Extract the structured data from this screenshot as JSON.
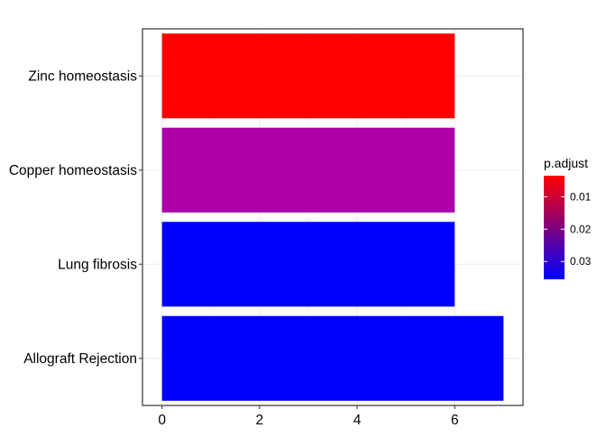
{
  "chart_data": {
    "type": "bar",
    "orientation": "horizontal",
    "categories": [
      "Allograft Rejection",
      "Lung fibrosis",
      "Copper homeostasis",
      "Zinc homeostasis"
    ],
    "values": [
      7,
      6,
      6,
      6
    ],
    "bar_colors": [
      "#0000ff",
      "#0000ff",
      "#ad00a9",
      "#ff0000"
    ],
    "xlim": [
      -0.4,
      7.4
    ],
    "x_ticks": [
      0,
      2,
      4,
      6
    ],
    "x_tick_labels": [
      "0",
      "2",
      "4",
      "6"
    ],
    "xlabel": "",
    "ylabel": "",
    "grid": true,
    "legend": {
      "title": "p.adjust",
      "position": "right",
      "gradient_low_color": "#0000ff",
      "gradient_high_color": "#ff0000",
      "ticks": [
        0.01,
        0.02,
        0.03
      ],
      "tick_labels": [
        "0.01",
        "0.02",
        "0.03"
      ]
    }
  }
}
